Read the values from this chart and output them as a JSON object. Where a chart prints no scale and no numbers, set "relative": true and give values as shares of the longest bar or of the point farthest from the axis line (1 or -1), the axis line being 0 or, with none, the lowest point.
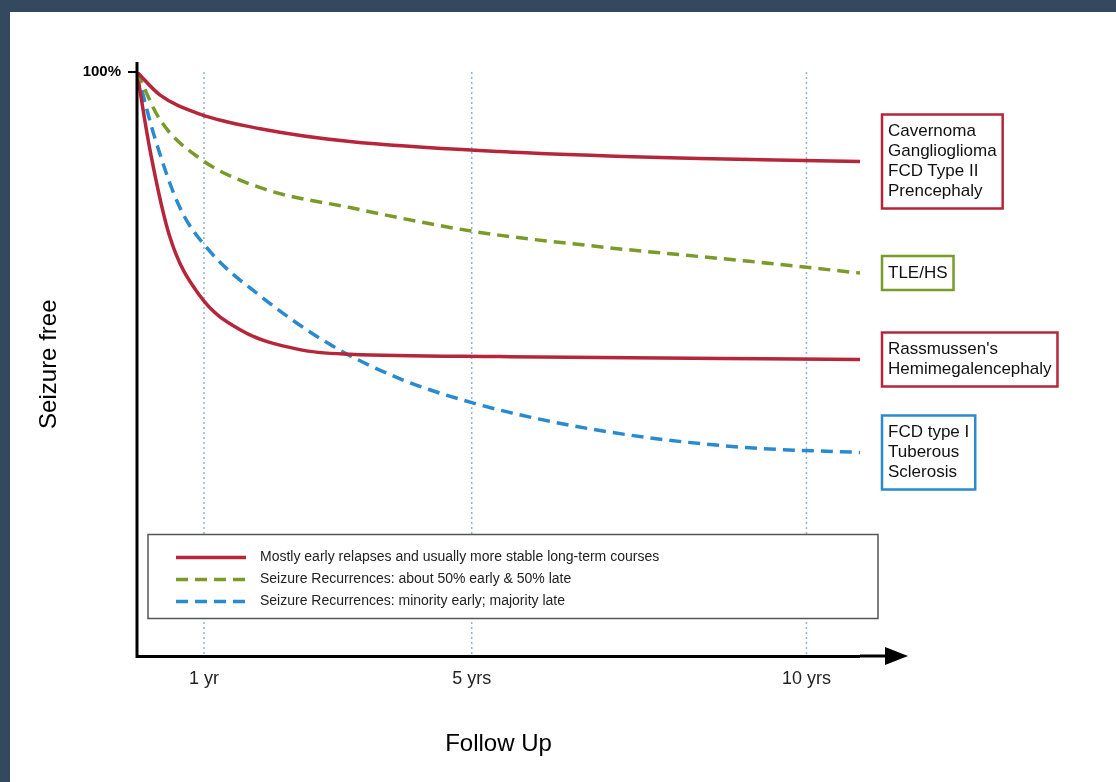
{
  "chart_data": {
    "type": "line",
    "relative": true,
    "xlabel": "Follow Up",
    "ylabel": "Seizure free",
    "xlim": [
      0,
      10.8
    ],
    "xticks": [
      {
        "value": 1,
        "label": "1 yr"
      },
      {
        "value": 5,
        "label": "5 yrs"
      },
      {
        "value": 10,
        "label": "10 yrs"
      }
    ],
    "grid": "x",
    "legend": "bottom",
    "marker": "none",
    "series": [
      {
        "name": "Mostly early relapses and usually more stable long-term courses",
        "color": "#b5263a",
        "line_style": "solid",
        "x": [
          0,
          0.34,
          0.94,
          1.84,
          3.18,
          5.42,
          8.4,
          10.8
        ],
        "values": [
          1,
          0.961,
          0.928,
          0.903,
          0.881,
          0.864,
          0.852,
          0.847
        ]
      },
      {
        "name": "Seizure Recurrences: about 50% early & 50% late",
        "color": "#7a9a2a",
        "line_style": "dashed",
        "x": [
          0,
          0.34,
          0.94,
          1.84,
          3.18,
          5.04,
          6.91,
          9.15,
          10.8
        ],
        "values": [
          1,
          0.919,
          0.852,
          0.802,
          0.768,
          0.727,
          0.701,
          0.676,
          0.656
        ]
      },
      {
        "color": "#b5263a",
        "line_style": "solid",
        "x": [
          0,
          0.19,
          0.49,
          0.94,
          1.54,
          2.43,
          3.18,
          5.42,
          10.8
        ],
        "values": [
          1,
          0.869,
          0.718,
          0.617,
          0.559,
          0.525,
          0.517,
          0.513,
          0.508
        ]
      },
      {
        "name": "Seizure Recurrences: minority early; majority late",
        "color": "#2a8ad0",
        "line_style": "dashed",
        "x": [
          0,
          0.27,
          0.64,
          1.09,
          1.84,
          2.88,
          3.93,
          5.04,
          6.31,
          7.66,
          9.15,
          10.8
        ],
        "values": [
          1,
          0.886,
          0.768,
          0.693,
          0.617,
          0.534,
          0.475,
          0.433,
          0.399,
          0.374,
          0.357,
          0.349
        ]
      }
    ],
    "annotations": [
      "100%",
      "Cavernoma\nGanglioglioma\nFCD Type II\nPrencephaly",
      "TLE/HS",
      "Rassmussen's\nHemimegalencephaly",
      "FCD type I\nTuberous\nSclerosis"
    ]
  }
}
